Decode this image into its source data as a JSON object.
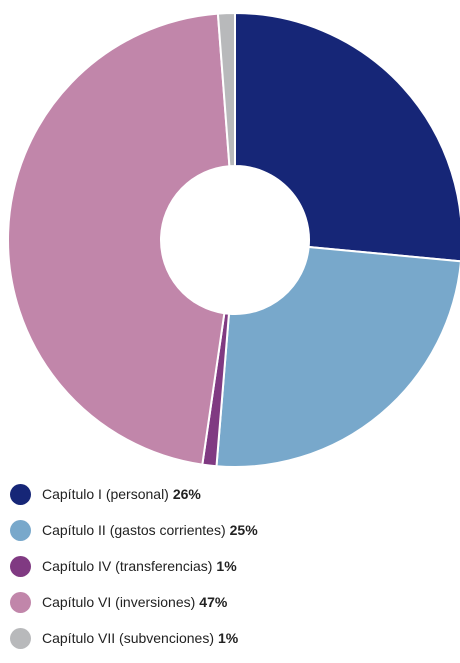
{
  "chart_data": {
    "type": "pie",
    "variant": "donut",
    "legend_position": "bottom",
    "slices": [
      {
        "label": "Capítulo I (personal)",
        "percent_label": "26%",
        "value": 26.5,
        "color": "#162677"
      },
      {
        "label": "Capítulo II (gastos corrientes)",
        "percent_label": "25%",
        "value": 24.8,
        "color": "#78a8cb"
      },
      {
        "label": "Capítulo IV (transferencias)",
        "percent_label": "1%",
        "value": 1.0,
        "color": "#803a82"
      },
      {
        "label": "Capítulo VI (inversiones)",
        "percent_label": "47%",
        "value": 46.5,
        "color": "#c186aa"
      },
      {
        "label": "Capítulo VII (subvenciones)",
        "percent_label": "1%",
        "value": 1.2,
        "color": "#b8b9bb"
      }
    ]
  }
}
